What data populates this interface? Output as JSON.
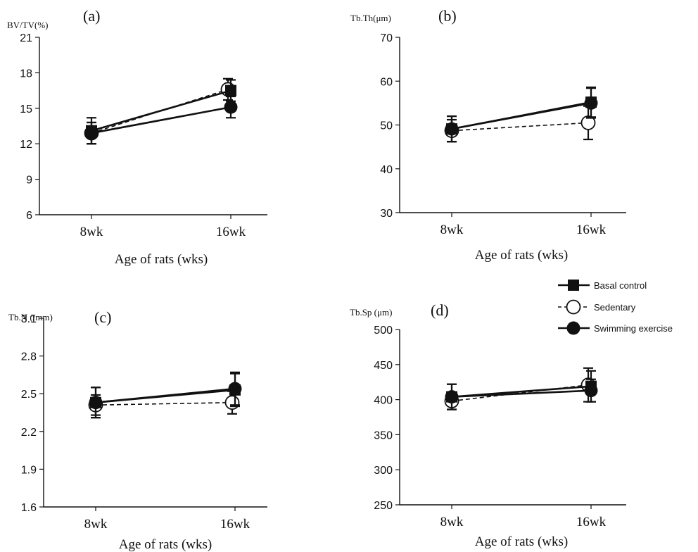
{
  "chart_data": [
    {
      "type": "line",
      "panel_label": "(a)",
      "ylabel": "BV/TV(%)",
      "xlabel": "Age of rats (wks)",
      "categories": [
        "8wk",
        "16wk"
      ],
      "ylim": [
        6,
        21
      ],
      "yticks": [
        6,
        9,
        12,
        15,
        18,
        21
      ],
      "series": [
        {
          "name": "Basal control",
          "values": [
            13.1,
            16.5
          ],
          "errors": [
            1.1,
            0.9
          ]
        },
        {
          "name": "Sedentary",
          "values": [
            12.9,
            16.6
          ],
          "errors": [
            0.9,
            0.9
          ]
        },
        {
          "name": "Swimming exercise",
          "values": [
            12.9,
            15.1
          ],
          "errors": [
            0.9,
            0.9
          ]
        }
      ]
    },
    {
      "type": "line",
      "panel_label": "(b)",
      "ylabel": "Tb.Th(μm)",
      "xlabel": "Age of rats (wks)",
      "categories": [
        "8wk",
        "16wk"
      ],
      "ylim": [
        30,
        70
      ],
      "yticks": [
        30,
        40,
        50,
        60,
        70
      ],
      "series": [
        {
          "name": "Basal control",
          "values": [
            49.1,
            55.2
          ],
          "errors": [
            2.9,
            3.4
          ]
        },
        {
          "name": "Sedentary",
          "values": [
            48.7,
            50.5
          ],
          "errors": [
            2.5,
            3.8
          ]
        },
        {
          "name": "Swimming exercise",
          "values": [
            49.1,
            55.0
          ],
          "errors": [
            2.9,
            3.4
          ]
        }
      ]
    },
    {
      "type": "line",
      "panel_label": "(c)",
      "ylabel": "Tb.N (/mm)",
      "xlabel": "Age of rats (wks)",
      "categories": [
        "8wk",
        "16wk"
      ],
      "ylim": [
        1.6,
        3.1
      ],
      "yticks": [
        1.6,
        1.9,
        2.2,
        2.5,
        2.8,
        3.1
      ],
      "series": [
        {
          "name": "Basal control",
          "values": [
            2.43,
            2.53
          ],
          "errors": [
            0.12,
            0.13
          ]
        },
        {
          "name": "Sedentary",
          "values": [
            2.41,
            2.43
          ],
          "errors": [
            0.08,
            0.09
          ]
        },
        {
          "name": "Swimming exercise",
          "values": [
            2.43,
            2.54
          ],
          "errors": [
            0.12,
            0.13
          ]
        }
      ]
    },
    {
      "type": "line",
      "panel_label": "(d)",
      "ylabel": "Tb.Sp (μm)",
      "xlabel": "Age of rats (wks)",
      "categories": [
        "8wk",
        "16wk"
      ],
      "ylim": [
        250,
        500
      ],
      "yticks": [
        250,
        300,
        350,
        400,
        450,
        500
      ],
      "series": [
        {
          "name": "Basal control",
          "values": [
            404,
            419
          ],
          "errors": [
            18,
            22
          ]
        },
        {
          "name": "Sedentary",
          "values": [
            398,
            421
          ],
          "errors": [
            12,
            24
          ]
        },
        {
          "name": "Swimming exercise",
          "values": [
            404,
            413
          ],
          "errors": [
            18,
            16
          ]
        }
      ]
    }
  ],
  "legend": {
    "items": [
      "Basal control",
      "Sedentary",
      "Swimming exercise"
    ],
    "position": "right, between panels (b) and (d)"
  },
  "styles": {
    "Basal control": {
      "line": "solid",
      "marker": "square-filled"
    },
    "Sedentary": {
      "line": "dashed",
      "marker": "circle-open"
    },
    "Swimming exercise": {
      "line": "solid",
      "marker": "circle-filled"
    }
  },
  "colors": {
    "ink": "#111111",
    "background": "#ffffff"
  }
}
